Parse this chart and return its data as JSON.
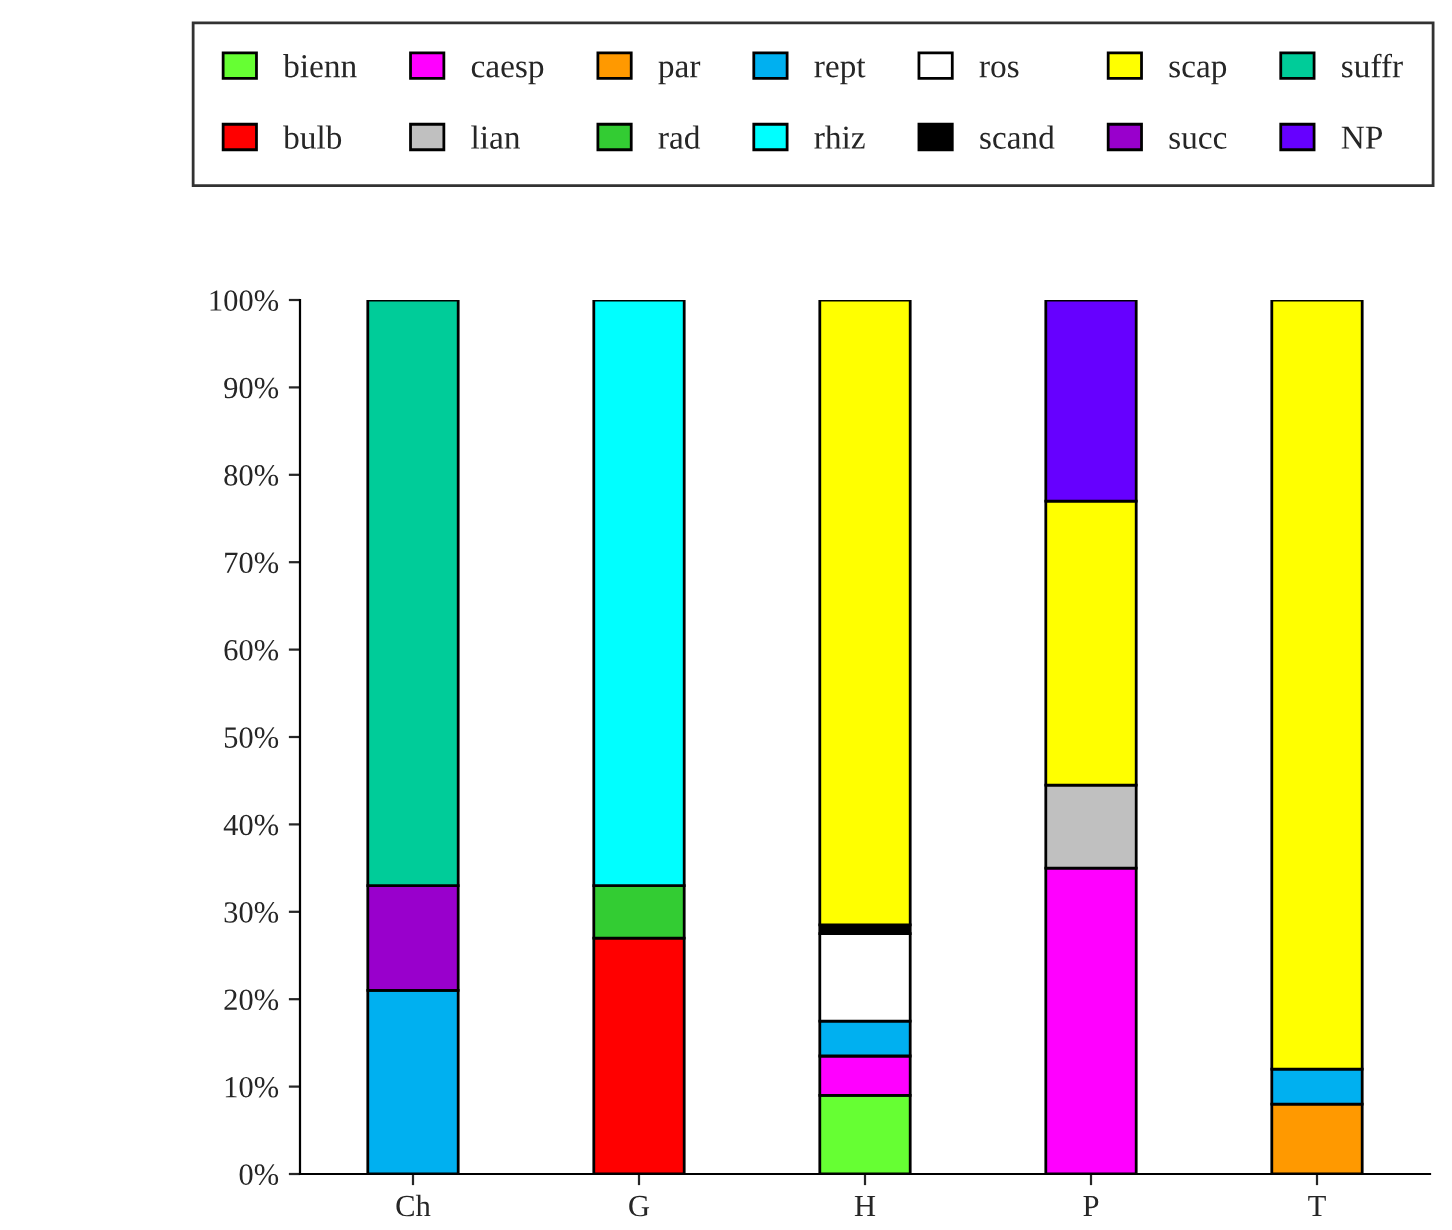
{
  "chart_data": {
    "type": "bar",
    "stacked": true,
    "legend": "top",
    "grid": false,
    "categories": [
      "Ch",
      "G",
      "H",
      "P",
      "T"
    ],
    "ylim": [
      0,
      100
    ],
    "yticks": [
      {
        "value": 0,
        "label": "0%"
      },
      {
        "value": 10,
        "label": "10%"
      },
      {
        "value": 20,
        "label": "20%"
      },
      {
        "value": 30,
        "label": "30%"
      },
      {
        "value": 40,
        "label": "40%"
      },
      {
        "value": 50,
        "label": "50%"
      },
      {
        "value": 60,
        "label": "60%"
      },
      {
        "value": 70,
        "label": "70%"
      },
      {
        "value": 80,
        "label": "80%"
      },
      {
        "value": 90,
        "label": "90%"
      },
      {
        "value": 100,
        "label": "100%"
      }
    ],
    "series": [
      {
        "name": "bienn",
        "color": "#66ff33",
        "values": [
          null,
          null,
          9,
          null,
          null
        ]
      },
      {
        "name": "bulb",
        "color": "#ff0000",
        "values": [
          null,
          27,
          null,
          null,
          null
        ]
      },
      {
        "name": "caesp",
        "color": "#ff00ff",
        "values": [
          null,
          null,
          4.5,
          35,
          null
        ]
      },
      {
        "name": "lian",
        "color": "#c0c0c0",
        "values": [
          null,
          null,
          null,
          9.5,
          null
        ]
      },
      {
        "name": "par",
        "color": "#ff9900",
        "values": [
          null,
          null,
          null,
          null,
          8
        ]
      },
      {
        "name": "rad",
        "color": "#33cc33",
        "values": [
          null,
          6,
          null,
          null,
          null
        ]
      },
      {
        "name": "rept",
        "color": "#00b0f0",
        "values": [
          21,
          null,
          4,
          null,
          4
        ]
      },
      {
        "name": "rhiz",
        "color": "#00ffff",
        "values": [
          null,
          67,
          null,
          null,
          null
        ]
      },
      {
        "name": "ros",
        "color": "#ffffff",
        "values": [
          null,
          null,
          10,
          null,
          null
        ]
      },
      {
        "name": "scand",
        "color": "#000000",
        "values": [
          null,
          null,
          1,
          null,
          null
        ]
      },
      {
        "name": "scap",
        "color": "#ffff00",
        "values": [
          null,
          null,
          71.5,
          32.5,
          88
        ]
      },
      {
        "name": "succ",
        "color": "#9900cc",
        "values": [
          12,
          null,
          null,
          null,
          null
        ]
      },
      {
        "name": "suffr",
        "color": "#00cc99",
        "values": [
          67,
          null,
          null,
          null,
          null
        ]
      },
      {
        "name": "NP",
        "color": "#6600ff",
        "values": [
          null,
          null,
          null,
          23,
          null
        ]
      }
    ]
  }
}
